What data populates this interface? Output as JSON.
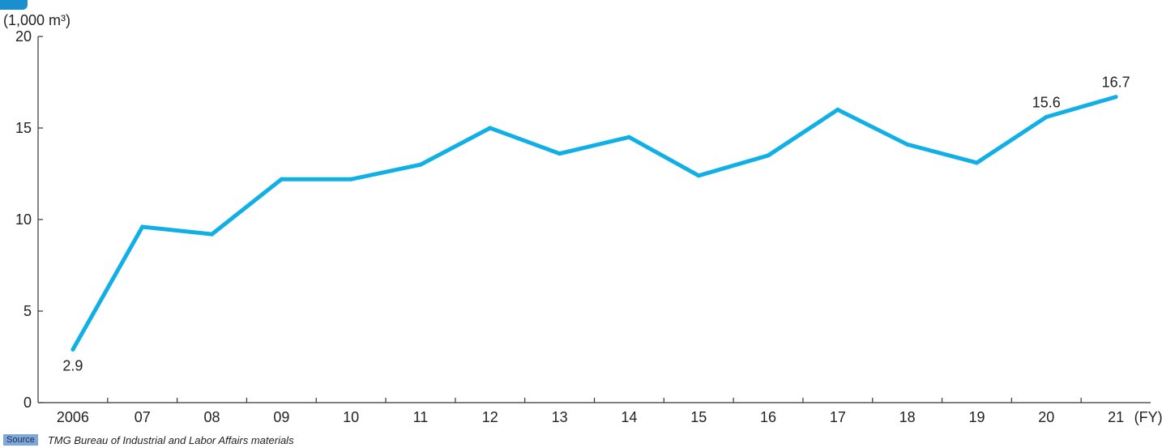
{
  "unit_label": "(1,000 m³)",
  "source": {
    "badge": "Source",
    "text": "TMG Bureau of Industrial and Labor Affairs materials"
  },
  "colors": {
    "series_line": "#10b0e6",
    "axis": "#333333",
    "badge": "#1a8fd0",
    "source_badge": "#7fa8d8"
  },
  "chart_data": {
    "type": "line",
    "title": "",
    "xlabel": "(FY)",
    "ylabel": "(1,000 m³)",
    "categories": [
      "2006",
      "07",
      "08",
      "09",
      "10",
      "11",
      "12",
      "13",
      "14",
      "15",
      "16",
      "17",
      "18",
      "19",
      "20",
      "21"
    ],
    "series": [
      {
        "values": [
          2.9,
          9.6,
          9.2,
          12.2,
          12.2,
          13.0,
          15.0,
          13.6,
          14.5,
          12.4,
          13.5,
          16.0,
          14.1,
          13.1,
          15.6,
          16.7
        ]
      }
    ],
    "data_labels": [
      {
        "index": 0,
        "text": "2.9",
        "position": "below"
      },
      {
        "index": 14,
        "text": "15.6",
        "position": "above"
      },
      {
        "index": 15,
        "text": "16.7",
        "position": "above"
      }
    ],
    "yticks": [
      0,
      5,
      10,
      15,
      20
    ],
    "ylim": [
      0,
      20
    ],
    "grid": false,
    "legend": "none"
  }
}
